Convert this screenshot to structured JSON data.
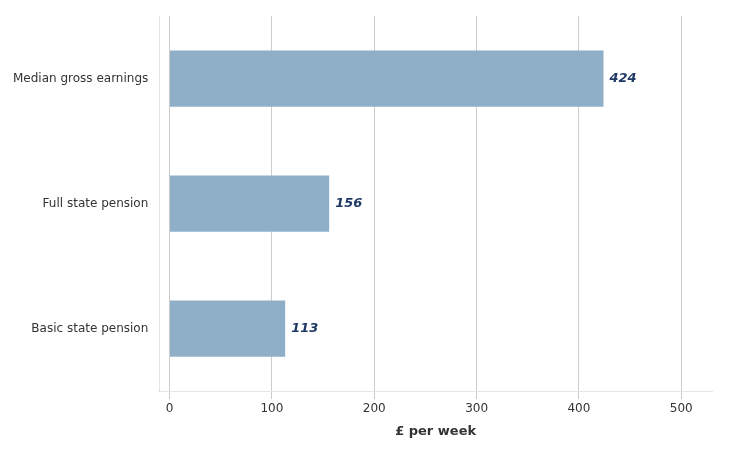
{
  "chart_data": {
    "type": "bar",
    "orientation": "horizontal",
    "categories": [
      "Basic state pension",
      "Full state pension",
      "Median gross earnings"
    ],
    "values": [
      113,
      156,
      424
    ],
    "color": "#8fafc8",
    "xlabel": "£ per week",
    "xlim": [
      -10,
      530
    ],
    "xticks": [
      0,
      100,
      200,
      300,
      400,
      500
    ],
    "grid": true,
    "data_labels": true
  }
}
